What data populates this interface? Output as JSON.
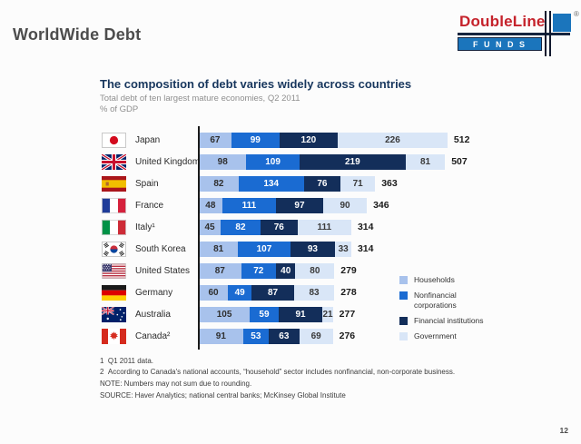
{
  "slide": {
    "title": "WorldWide Debt",
    "page_number": "12"
  },
  "logo": {
    "name": "DoubleLine",
    "funds": "F U N D S",
    "registered": "®",
    "red": "#c5222b",
    "blue": "#1b75bc",
    "navy": "#16243e"
  },
  "chart": {
    "title": "The composition of debt varies widely across countries",
    "subtitle": "Total debt of ten largest mature economies, Q2 2011",
    "unit_label": "% of GDP",
    "legend": [
      {
        "label": "Households",
        "color": "#a8c2ec"
      },
      {
        "label": "Nonfinancial corporations",
        "color": "#1a6bd2"
      },
      {
        "label": "Financial institutions",
        "color": "#132e5a"
      },
      {
        "label": "Government",
        "color": "#d9e6f7"
      }
    ],
    "rows": [
      {
        "country": "Japan",
        "code": "jp",
        "values": [
          67,
          99,
          120,
          226
        ],
        "total": "512"
      },
      {
        "country": "United Kingdom",
        "code": "gb",
        "values": [
          98,
          109,
          219,
          81
        ],
        "total": "507"
      },
      {
        "country": "Spain",
        "code": "es",
        "values": [
          82,
          134,
          76,
          71
        ],
        "total": "363"
      },
      {
        "country": "France",
        "code": "fr",
        "values": [
          48,
          111,
          97,
          90
        ],
        "total": "346"
      },
      {
        "country": "Italy¹",
        "code": "it",
        "values": [
          45,
          82,
          76,
          111
        ],
        "total": "314"
      },
      {
        "country": "South Korea",
        "code": "kr",
        "values": [
          81,
          107,
          93,
          33
        ],
        "total": "314"
      },
      {
        "country": "United States",
        "code": "us",
        "values": [
          87,
          72,
          40,
          80
        ],
        "total": "279"
      },
      {
        "country": "Germany",
        "code": "de",
        "values": [
          60,
          49,
          87,
          83
        ],
        "total": "278"
      },
      {
        "country": "Australia",
        "code": "au",
        "values": [
          105,
          59,
          91,
          21
        ],
        "total": "277"
      },
      {
        "country": "Canada²",
        "code": "ca",
        "values": [
          91,
          53,
          63,
          69
        ],
        "total": "276"
      }
    ],
    "footnotes": [
      "1  Q1 2011 data.",
      "2  According to Canada's national accounts, “household” sector includes nonfinancial, non-corporate business.",
      "NOTE: Numbers may not sum due to rounding.",
      "SOURCE: Haver Analytics; national central banks; McKinsey Global Institute"
    ]
  },
  "chart_data": {
    "type": "bar",
    "stacked": true,
    "orientation": "horizontal",
    "title": "The composition of debt varies widely across countries",
    "subtitle": "Total debt of ten largest mature economies, Q2 2011",
    "xlabel": "% of GDP",
    "categories": [
      "Japan",
      "United Kingdom",
      "Spain",
      "France",
      "Italy¹",
      "South Korea",
      "United States",
      "Germany",
      "Australia",
      "Canada²"
    ],
    "series": [
      {
        "name": "Households",
        "values": [
          67,
          98,
          82,
          48,
          45,
          81,
          87,
          60,
          105,
          91
        ]
      },
      {
        "name": "Nonfinancial corporations",
        "values": [
          99,
          109,
          134,
          111,
          82,
          107,
          72,
          49,
          59,
          53
        ]
      },
      {
        "name": "Financial institutions",
        "values": [
          120,
          219,
          76,
          97,
          76,
          93,
          40,
          87,
          91,
          63
        ]
      },
      {
        "name": "Government",
        "values": [
          226,
          81,
          71,
          90,
          111,
          33,
          80,
          83,
          21,
          69
        ]
      }
    ],
    "totals": [
      512,
      507,
      363,
      346,
      314,
      314,
      279,
      278,
      277,
      276
    ],
    "xlim": [
      0,
      540
    ],
    "grid": false,
    "legend_position": "right"
  }
}
